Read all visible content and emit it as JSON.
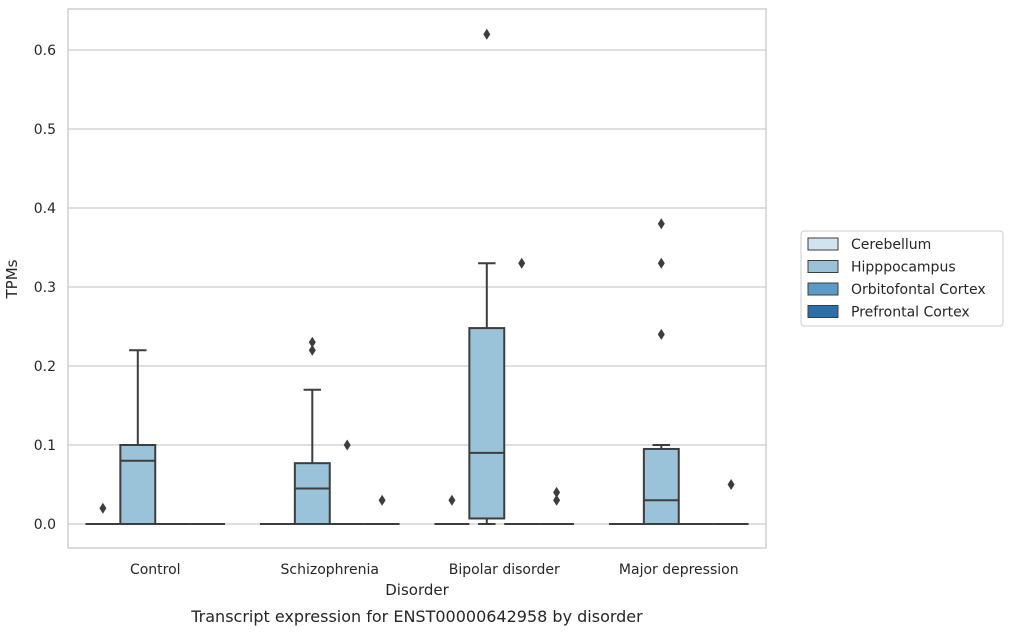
{
  "chart_data": {
    "type": "box",
    "title": "",
    "caption": "Transcript expression for ENST00000642958 by disorder",
    "xlabel": "Disorder",
    "ylabel": "TPMs",
    "ylim": [
      -0.03,
      0.65
    ],
    "yticks": [
      "0.0",
      "0.1",
      "0.2",
      "0.3",
      "0.4",
      "0.5",
      "0.6"
    ],
    "grid": true,
    "legend_position": "right",
    "categories": [
      "Control",
      "Schizophrenia",
      "Bipolar disorder",
      "Major depression"
    ],
    "series": [
      {
        "name": "Cerebellum",
        "color": "#d1e2f1",
        "boxes": [
          {
            "q1": 0,
            "median": 0,
            "q3": 0,
            "whisker_low": 0,
            "whisker_high": 0,
            "outliers": [
              0.02
            ]
          },
          {
            "q1": 0,
            "median": 0,
            "q3": 0,
            "whisker_low": 0,
            "whisker_high": 0,
            "outliers": []
          },
          {
            "q1": 0,
            "median": 0,
            "q3": 0,
            "whisker_low": 0,
            "whisker_high": 0,
            "outliers": [
              0.03
            ]
          },
          {
            "q1": 0,
            "median": 0,
            "q3": 0,
            "whisker_low": 0,
            "whisker_high": 0,
            "outliers": []
          }
        ]
      },
      {
        "name": "Hipppocampus",
        "color": "#9ac2d9",
        "boxes": [
          {
            "q1": 0,
            "median": 0.08,
            "q3": 0.1,
            "whisker_low": 0,
            "whisker_high": 0.22,
            "outliers": []
          },
          {
            "q1": 0,
            "median": 0.045,
            "q3": 0.077,
            "whisker_low": 0,
            "whisker_high": 0.17,
            "outliers": [
              0.22,
              0.23
            ]
          },
          {
            "q1": 0.007,
            "median": 0.09,
            "q3": 0.248,
            "whisker_low": 0,
            "whisker_high": 0.33,
            "outliers": [
              0.62
            ]
          },
          {
            "q1": 0,
            "median": 0.03,
            "q3": 0.095,
            "whisker_low": 0,
            "whisker_high": 0.1,
            "outliers": [
              0.24,
              0.33,
              0.38
            ]
          }
        ]
      },
      {
        "name": "Orbitofontal Cortex",
        "color": "#5c9ac8",
        "boxes": [
          {
            "q1": 0,
            "median": 0,
            "q3": 0,
            "whisker_low": 0,
            "whisker_high": 0,
            "outliers": []
          },
          {
            "q1": 0,
            "median": 0,
            "q3": 0,
            "whisker_low": 0,
            "whisker_high": 0,
            "outliers": [
              0.1
            ]
          },
          {
            "q1": 0,
            "median": 0,
            "q3": 0,
            "whisker_low": 0,
            "whisker_high": 0,
            "outliers": [
              0.33
            ]
          },
          {
            "q1": 0,
            "median": 0,
            "q3": 0,
            "whisker_low": 0,
            "whisker_high": 0,
            "outliers": []
          }
        ]
      },
      {
        "name": "Prefrontal Cortex",
        "color": "#2e6ea7",
        "boxes": [
          {
            "q1": 0,
            "median": 0,
            "q3": 0,
            "whisker_low": 0,
            "whisker_high": 0,
            "outliers": []
          },
          {
            "q1": 0,
            "median": 0,
            "q3": 0,
            "whisker_low": 0,
            "whisker_high": 0,
            "outliers": [
              0.03
            ]
          },
          {
            "q1": 0,
            "median": 0,
            "q3": 0,
            "whisker_low": 0,
            "whisker_high": 0,
            "outliers": [
              0.03,
              0.04
            ]
          },
          {
            "q1": 0,
            "median": 0,
            "q3": 0,
            "whisker_low": 0,
            "whisker_high": 0,
            "outliers": [
              0.05
            ]
          }
        ]
      }
    ]
  }
}
